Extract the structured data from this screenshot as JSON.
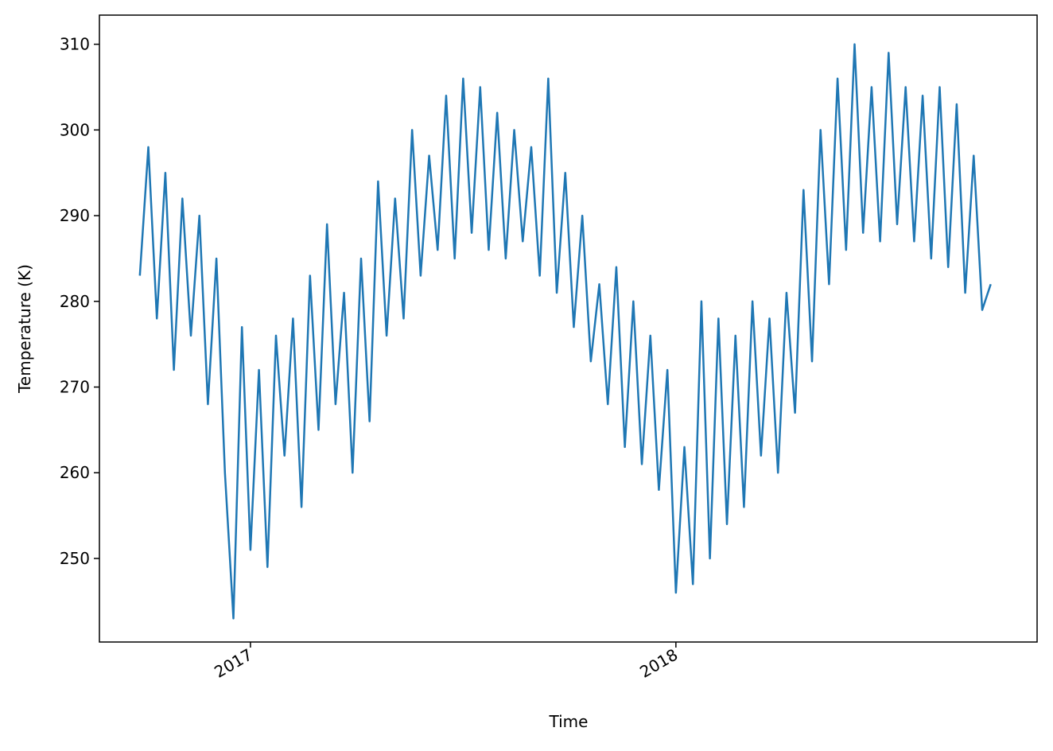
{
  "chart_data": {
    "type": "line",
    "xlabel": "Time",
    "ylabel": "Temperature (K)",
    "x": [
      2016.74,
      2016.76,
      2016.78,
      2016.8,
      2016.82,
      2016.84,
      2016.86,
      2016.88,
      2016.9,
      2016.92,
      2016.94,
      2016.96,
      2016.98,
      2017.0,
      2017.02,
      2017.04,
      2017.06,
      2017.08,
      2017.1,
      2017.12,
      2017.14,
      2017.16,
      2017.18,
      2017.2,
      2017.22,
      2017.24,
      2017.26,
      2017.28,
      2017.3,
      2017.32,
      2017.34,
      2017.36,
      2017.38,
      2017.4,
      2017.42,
      2017.44,
      2017.46,
      2017.48,
      2017.5,
      2017.52,
      2017.54,
      2017.56,
      2017.58,
      2017.6,
      2017.62,
      2017.64,
      2017.66,
      2017.68,
      2017.7,
      2017.72,
      2017.74,
      2017.76,
      2017.78,
      2017.8,
      2017.82,
      2017.84,
      2017.86,
      2017.88,
      2017.9,
      2017.92,
      2017.94,
      2017.96,
      2017.98,
      2018.0,
      2018.02,
      2018.04,
      2018.06,
      2018.08,
      2018.1,
      2018.12,
      2018.14,
      2018.16,
      2018.18,
      2018.2,
      2018.22,
      2018.24,
      2018.26,
      2018.28,
      2018.3,
      2018.32,
      2018.34,
      2018.36,
      2018.38,
      2018.4,
      2018.42,
      2018.44,
      2018.46,
      2018.48,
      2018.5,
      2018.52,
      2018.54,
      2018.56,
      2018.58,
      2018.6,
      2018.62,
      2018.64,
      2018.66,
      2018.68,
      2018.7,
      2018.72,
      2018.74
    ],
    "series": [
      {
        "color": "#1f77b4",
        "values": [
          283,
          298,
          278,
          295,
          272,
          292,
          276,
          290,
          268,
          285,
          260,
          243,
          277,
          251,
          272,
          249,
          276,
          262,
          278,
          256,
          283,
          265,
          289,
          268,
          281,
          260,
          285,
          266,
          294,
          276,
          292,
          278,
          300,
          283,
          297,
          286,
          304,
          285,
          306,
          288,
          305,
          286,
          302,
          285,
          300,
          287,
          298,
          283,
          306,
          281,
          295,
          277,
          290,
          273,
          282,
          268,
          284,
          263,
          280,
          261,
          276,
          258,
          272,
          246,
          263,
          247,
          280,
          250,
          278,
          254,
          276,
          256,
          280,
          262,
          278,
          260,
          281,
          267,
          293,
          273,
          300,
          282,
          306,
          286,
          310,
          288,
          305,
          287,
          309,
          289,
          305,
          287,
          304,
          285,
          305,
          284,
          303,
          281,
          297,
          279,
          282
        ]
      }
    ],
    "xlim": [
      2016.645,
      2018.849
    ],
    "xticks": [
      2017,
      2018
    ],
    "ylim": [
      240.25,
      313.4
    ],
    "yticks": [
      250,
      260,
      270,
      280,
      290,
      300,
      310
    ],
    "grid": false
  }
}
